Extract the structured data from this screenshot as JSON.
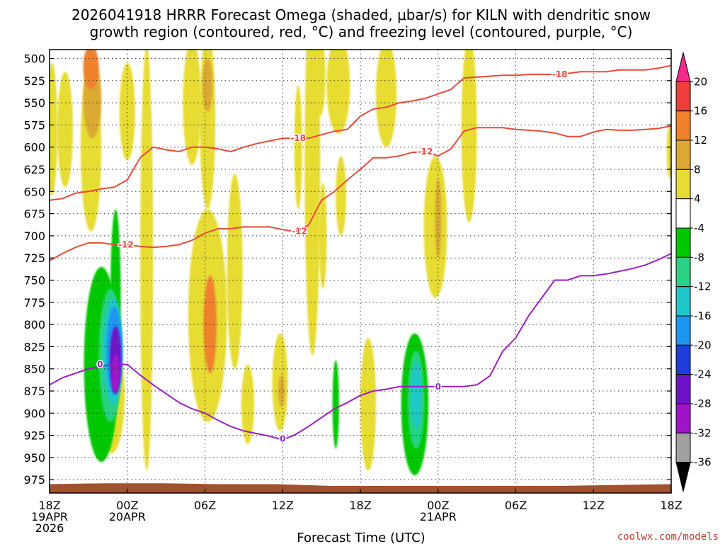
{
  "chart_data": {
    "type": "heatmap",
    "title_line1": "2026041918 HRRR Forecast Omega (shaded, μbar/s) for KILN with dendritic snow",
    "title_line2": "growth region (contoured, red, °C) and freezing level (contoured, purple, °C)",
    "xlabel": "Forecast Time (UTC)",
    "credit": "coolwx.com/models",
    "x_range_hours": [
      0,
      48
    ],
    "y_range_mb": [
      490,
      990
    ],
    "y_ticks": [
      500,
      525,
      550,
      575,
      600,
      625,
      650,
      675,
      700,
      725,
      750,
      775,
      800,
      825,
      850,
      875,
      900,
      925,
      950,
      975
    ],
    "x_ticks": [
      {
        "h": 0,
        "lines": [
          "18Z",
          "19APR",
          "2026"
        ]
      },
      {
        "h": 6,
        "lines": [
          "00Z",
          "20APR"
        ]
      },
      {
        "h": 12,
        "lines": [
          "06Z"
        ]
      },
      {
        "h": 18,
        "lines": [
          "12Z"
        ]
      },
      {
        "h": 24,
        "lines": [
          "18Z"
        ]
      },
      {
        "h": 30,
        "lines": [
          "00Z",
          "21APR"
        ]
      },
      {
        "h": 36,
        "lines": [
          "06Z"
        ]
      },
      {
        "h": 42,
        "lines": [
          "12Z"
        ]
      },
      {
        "h": 48,
        "lines": [
          "18Z"
        ]
      }
    ],
    "colorbar": {
      "levels": [
        "20",
        "16",
        "12",
        "8",
        "4",
        "-4",
        "-8",
        "-12",
        "-16",
        "-20",
        "-24",
        "-28",
        "-32",
        "-36"
      ],
      "colors": [
        "#f5288c",
        "#f03c3c",
        "#f0822d",
        "#dcaa32",
        "#e6dc32",
        "#ffffff",
        "#00c800",
        "#28d282",
        "#1ec8c8",
        "#1e96f0",
        "#1e3cdc",
        "#6e14c8",
        "#a014c8",
        "#a0a0a0",
        "#000000"
      ]
    },
    "omega_blobs": [
      {
        "h": 3.2,
        "p": 600,
        "dh": 0.8,
        "dp": 95,
        "v": 7
      },
      {
        "h": 3.3,
        "p": 545,
        "dh": 0.7,
        "dp": 45,
        "v": 11
      },
      {
        "h": 3.2,
        "p": 510,
        "dh": 0.6,
        "dp": 25,
        "v": 14
      },
      {
        "h": 1.2,
        "p": 580,
        "dh": 0.6,
        "dp": 65,
        "v": 5
      },
      {
        "h": 0.2,
        "p": 580,
        "dh": 0.4,
        "dp": 75,
        "v": 5
      },
      {
        "h": 6.0,
        "p": 560,
        "dh": 0.6,
        "dp": 55,
        "v": 5
      },
      {
        "h": 4.8,
        "p": 880,
        "dh": 1.0,
        "dp": 65,
        "v": 5
      },
      {
        "h": 7.5,
        "p": 725,
        "dh": 0.5,
        "dp": 240,
        "v": 6
      },
      {
        "h": 11.0,
        "p": 550,
        "dh": 0.7,
        "dp": 70,
        "v": 5
      },
      {
        "h": 12.2,
        "p": 570,
        "dh": 0.6,
        "dp": 100,
        "v": 7
      },
      {
        "h": 12.2,
        "p": 530,
        "dh": 0.4,
        "dp": 30,
        "v": 10
      },
      {
        "h": 12.2,
        "p": 790,
        "dh": 1.5,
        "dp": 120,
        "v": 7
      },
      {
        "h": 12.4,
        "p": 800,
        "dh": 0.5,
        "dp": 55,
        "v": 12
      },
      {
        "h": 14.3,
        "p": 740,
        "dh": 0.6,
        "dp": 110,
        "v": 5
      },
      {
        "h": 15.3,
        "p": 890,
        "dh": 0.5,
        "dp": 45,
        "v": 5
      },
      {
        "h": 17.8,
        "p": 865,
        "dh": 0.6,
        "dp": 55,
        "v": 6
      },
      {
        "h": 17.9,
        "p": 875,
        "dh": 0.25,
        "dp": 18,
        "v": 9
      },
      {
        "h": 19.2,
        "p": 600,
        "dh": 0.3,
        "dp": 70,
        "v": 5
      },
      {
        "h": 20.3,
        "p": 620,
        "dh": 0.6,
        "dp": 215,
        "v": 6
      },
      {
        "h": 20.9,
        "p": 520,
        "dh": 0.4,
        "dp": 45,
        "v": 5
      },
      {
        "h": 21.1,
        "p": 700,
        "dh": 0.3,
        "dp": 60,
        "v": 5
      },
      {
        "h": 22.3,
        "p": 530,
        "dh": 0.9,
        "dp": 55,
        "v": 5
      },
      {
        "h": 22.5,
        "p": 655,
        "dh": 0.4,
        "dp": 45,
        "v": 5
      },
      {
        "h": 24.6,
        "p": 890,
        "dh": 0.6,
        "dp": 75,
        "v": 5
      },
      {
        "h": 26.0,
        "p": 540,
        "dh": 0.8,
        "dp": 60,
        "v": 5
      },
      {
        "h": 29.8,
        "p": 690,
        "dh": 0.9,
        "dp": 80,
        "v": 5
      },
      {
        "h": 30.0,
        "p": 680,
        "dh": 0.25,
        "dp": 45,
        "v": 9
      },
      {
        "h": 32.4,
        "p": 580,
        "dh": 0.6,
        "dp": 105,
        "v": 5
      },
      {
        "h": 47.9,
        "p": 605,
        "dh": 0.25,
        "dp": 30,
        "v": 5
      },
      {
        "h": 4.0,
        "p": 845,
        "dh": 1.35,
        "dp": 110,
        "v": -5
      },
      {
        "h": 5.1,
        "p": 770,
        "dh": 0.4,
        "dp": 100,
        "v": -5
      },
      {
        "h": 4.7,
        "p": 835,
        "dh": 0.9,
        "dp": 75,
        "v": -10
      },
      {
        "h": 4.9,
        "p": 830,
        "dh": 0.75,
        "dp": 60,
        "v": -15
      },
      {
        "h": 5.0,
        "p": 830,
        "dh": 0.6,
        "dp": 50,
        "v": -19
      },
      {
        "h": 5.1,
        "p": 840,
        "dh": 0.45,
        "dp": 38,
        "v": -25
      },
      {
        "h": 5.1,
        "p": 855,
        "dh": 0.3,
        "dp": 22,
        "v": -29
      },
      {
        "h": 22.1,
        "p": 890,
        "dh": 0.25,
        "dp": 50,
        "v": -5
      },
      {
        "h": 28.2,
        "p": 890,
        "dh": 1.05,
        "dp": 80,
        "v": -5
      },
      {
        "h": 28.3,
        "p": 885,
        "dh": 0.65,
        "dp": 55,
        "v": -9
      },
      {
        "h": 28.3,
        "p": 880,
        "dh": 0.4,
        "dp": 38,
        "v": -13
      }
    ],
    "surface_mb": [
      980,
      979,
      979,
      980,
      980,
      982,
      982,
      982,
      982,
      982,
      981,
      980
    ],
    "series": [
      {
        "name": "-18 C",
        "color": "#e84a3c",
        "label": "-18",
        "x": [
          0,
          1,
          2,
          3,
          4,
          5,
          6,
          7,
          8,
          9,
          10,
          11,
          12,
          13,
          14,
          15,
          16,
          17,
          18,
          19,
          20,
          21,
          22,
          23,
          24,
          25,
          26,
          27,
          28,
          29,
          30,
          31,
          32,
          33,
          34,
          35,
          36,
          37,
          38,
          39,
          40,
          41,
          42,
          43,
          44,
          45,
          46,
          47,
          48
        ],
        "y": [
          660,
          658,
          652,
          650,
          647,
          645,
          637,
          612,
          600,
          603,
          605,
          600,
          600,
          602,
          605,
          600,
          596,
          593,
          590,
          590,
          590,
          586,
          582,
          580,
          565,
          557,
          555,
          550,
          548,
          545,
          540,
          535,
          522,
          521,
          520,
          519,
          519,
          518,
          518,
          518,
          517,
          515,
          515,
          515,
          513,
          513,
          513,
          511,
          508
        ],
        "labels": [
          {
            "x": 19.2,
            "y": 590
          },
          {
            "x": 39.4,
            "y": 518
          }
        ]
      },
      {
        "name": "-12 C",
        "color": "#e84a3c",
        "label": "-12",
        "x": [
          0,
          1,
          2,
          3,
          4,
          5,
          6,
          7,
          8,
          9,
          10,
          11,
          12,
          13,
          14,
          15,
          16,
          17,
          18,
          19,
          20,
          21,
          22,
          23,
          24,
          25,
          26,
          27,
          28,
          29,
          30,
          31,
          32,
          33,
          34,
          35,
          36,
          37,
          38,
          39,
          40,
          41,
          42,
          43,
          44,
          45,
          46,
          47,
          48
        ],
        "y": [
          728,
          720,
          713,
          708,
          708,
          710,
          710,
          712,
          713,
          712,
          710,
          705,
          697,
          692,
          692,
          690,
          690,
          690,
          693,
          695,
          688,
          660,
          650,
          637,
          625,
          612,
          612,
          610,
          606,
          605,
          610,
          602,
          582,
          578,
          578,
          578,
          580,
          581,
          582,
          584,
          588,
          588,
          583,
          580,
          581,
          581,
          580,
          579,
          576
        ],
        "labels": [
          {
            "x": 5.9,
            "y": 710
          },
          {
            "x": 19.3,
            "y": 695
          },
          {
            "x": 29.0,
            "y": 605
          }
        ]
      },
      {
        "name": "0 C freezing level",
        "color": "#9a20c0",
        "label": "0",
        "x": [
          0,
          1,
          2,
          3,
          4,
          5,
          6,
          7,
          8,
          9,
          10,
          11,
          12,
          13,
          14,
          15,
          16,
          17,
          18,
          19,
          20,
          21,
          22,
          23,
          24,
          25,
          26,
          27,
          28,
          29,
          30,
          31,
          32,
          33,
          34,
          35,
          36,
          37,
          38,
          39,
          40,
          41,
          42,
          43,
          44,
          45,
          46,
          47,
          48
        ],
        "y": [
          868,
          860,
          855,
          850,
          847,
          845,
          845,
          857,
          868,
          878,
          888,
          895,
          900,
          908,
          915,
          920,
          923,
          926,
          930,
          924,
          915,
          905,
          895,
          888,
          880,
          875,
          873,
          870,
          870,
          870,
          870,
          870,
          870,
          868,
          858,
          830,
          815,
          790,
          770,
          750,
          750,
          745,
          745,
          743,
          740,
          737,
          733,
          727,
          720
        ],
        "labels": [
          {
            "x": 3.9,
            "y": 845
          },
          {
            "x": 18.0,
            "y": 929
          },
          {
            "x": 30.0,
            "y": 870
          }
        ]
      }
    ]
  }
}
